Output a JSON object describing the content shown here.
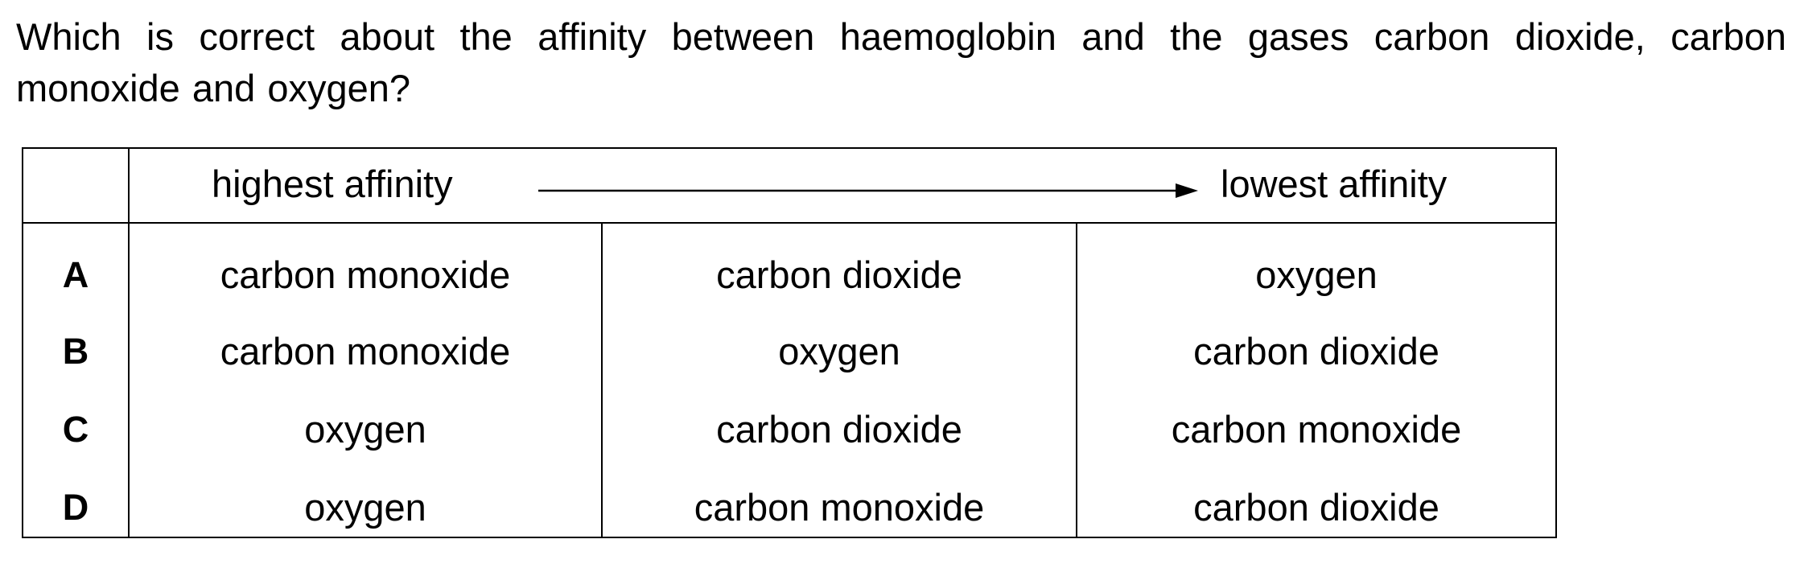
{
  "question": {
    "text": "Which is correct about the affinity between haemoglobin and the gases carbon dioxide, carbon monoxide and oxygen?"
  },
  "table": {
    "header": {
      "highest_label": "highest affinity",
      "lowest_label": "lowest affinity"
    },
    "rows": [
      {
        "letter": "A",
        "cells": [
          "carbon monoxide",
          "carbon dioxide",
          "oxygen"
        ]
      },
      {
        "letter": "B",
        "cells": [
          "carbon monoxide",
          "oxygen",
          "carbon dioxide"
        ]
      },
      {
        "letter": "C",
        "cells": [
          "oxygen",
          "carbon dioxide",
          "carbon monoxide"
        ]
      },
      {
        "letter": "D",
        "cells": [
          "oxygen",
          "carbon monoxide",
          "carbon dioxide"
        ]
      }
    ]
  }
}
